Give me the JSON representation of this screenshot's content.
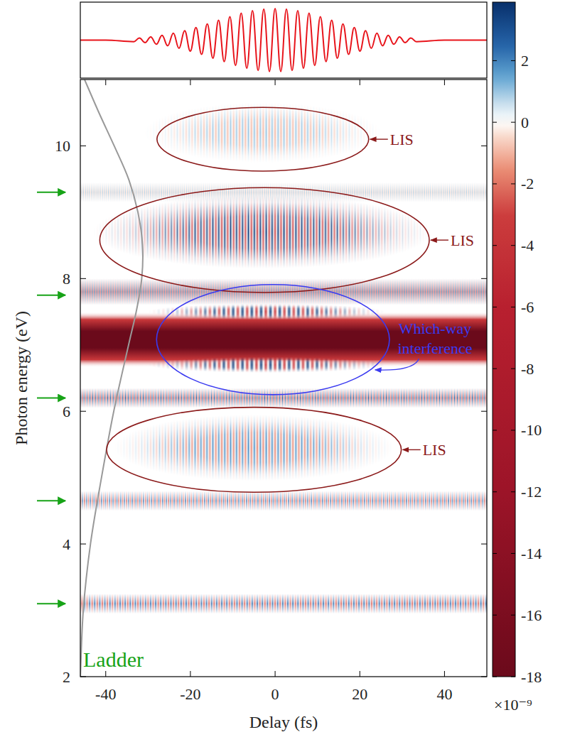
{
  "chart_data": {
    "type": "heatmap",
    "x_label": "Delay (fs)",
    "y_label": "Photon energy (eV)",
    "xlim": [
      -46,
      50
    ],
    "xticks": [
      -40,
      -20,
      0,
      20,
      40
    ],
    "ylim": [
      2,
      11
    ],
    "yticks": [
      2,
      4,
      6,
      8,
      10
    ],
    "colorbar": {
      "range": [
        -18,
        3.9
      ],
      "ticks": [
        2,
        0,
        -2,
        -4,
        -6,
        -8,
        -10,
        -12,
        -14,
        -16,
        -18
      ],
      "multiplier": "×10⁻⁹"
    },
    "absorption_band": {
      "energy": 7.08,
      "half_width": 0.42,
      "value": -18
    },
    "bands": [
      {
        "energy": 3.1,
        "half_width": 0.15,
        "amplitude": 2.5,
        "fringe_period": 1.2
      },
      {
        "energy": 4.65,
        "half_width": 0.15,
        "amplitude": 2.5,
        "fringe_period": 0.9
      },
      {
        "energy": 6.2,
        "half_width": 0.15,
        "amplitude": 3,
        "fringe_period": 0.7
      },
      {
        "energy": 7.8,
        "half_width": 0.2,
        "amplitude": 3.5,
        "fringe_period": 0.55
      },
      {
        "energy": 9.3,
        "half_width": 0.15,
        "amplitude": 0.8,
        "fringe_period": 0.45
      }
    ],
    "regions": [
      {
        "delay": -3,
        "delay_half_width": 28,
        "energy": 10.2,
        "energy_half_width": 0.45,
        "amplitude": 1,
        "fringe_period": 1.4
      },
      {
        "delay": -3,
        "delay_half_width": 40,
        "energy": 8.7,
        "energy_half_width": 0.55,
        "amplitude": 3.5,
        "fringe_period": 1.4
      },
      {
        "delay": -5,
        "delay_half_width": 33,
        "energy": 5.45,
        "energy_half_width": 0.5,
        "amplitude": 1.8,
        "fringe_period": 1.4
      },
      {
        "delay": -2,
        "delay_half_width": 28,
        "energy": 7.5,
        "energy_half_width": 0.12,
        "amplitude": 3.5,
        "fringe_period": 2.2
      },
      {
        "delay": -2,
        "delay_half_width": 28,
        "energy": 6.7,
        "energy_half_width": 0.12,
        "amplitude": 3.5,
        "fringe_period": 2.2
      }
    ],
    "annotations": [
      {
        "text": "LIS",
        "x": -2.9,
        "y": 10.1,
        "rx": 25,
        "ry": 0.48,
        "color": "#8b1a1a"
      },
      {
        "text": "LIS",
        "x": -2.5,
        "y": 8.58,
        "rx": 38.9,
        "ry": 0.79,
        "color": "#8b1a1a"
      },
      {
        "text": "Which-way interference",
        "x": -0.5,
        "y": 7.08,
        "rx": 27.5,
        "ry": 0.83,
        "color": "#3b3bf0"
      },
      {
        "text": "LIS",
        "x": -5,
        "y": 5.42,
        "rx": 34.8,
        "ry": 0.64,
        "color": "#8b1a1a"
      }
    ],
    "ladder": {
      "label": "Ladder",
      "color": "#17a317",
      "energies": [
        3.1,
        4.65,
        6.2,
        7.75,
        9.3
      ],
      "curve": {
        "x": [
          -46,
          -45.3,
          -43.6,
          -41,
          -38.1,
          -34.6,
          -32.8,
          -31.5,
          -31.3,
          -32.4,
          -34.6,
          -38,
          -41.6,
          -45
        ],
        "y": [
          2,
          3,
          4,
          5,
          6,
          7,
          7.5,
          8,
          8.5,
          9,
          9.5,
          10,
          10.5,
          11
        ],
        "color": "#999999"
      }
    },
    "pulse": {
      "color": "#e8141b",
      "ylim": [
        -1.2,
        1.2
      ],
      "x": [
        -46,
        -40,
        -33.38,
        -32.04,
        -30.71,
        -29.37,
        -28.04,
        -26.7,
        -25.37,
        -24.03,
        -22.7,
        -21.36,
        -20.03,
        -18.69,
        -17.36,
        -16.02,
        -14.69,
        -13.35,
        -12.02,
        -10.68,
        -9.35,
        -8.01,
        -6.68,
        -5.34,
        -4.01,
        -2.67,
        -1.34,
        0,
        1.34,
        2.67,
        4.01,
        5.34,
        6.68,
        8.01,
        9.35,
        10.68,
        12.02,
        13.35,
        14.69,
        16.02,
        17.36,
        18.69,
        20.03,
        21.36,
        22.7,
        24.03,
        25.37,
        26.7,
        28.04,
        29.37,
        30.71,
        32.04,
        33.38,
        40,
        50
      ],
      "values": [
        0,
        0,
        -0.05,
        0.07,
        -0.08,
        0.1,
        -0.13,
        0.15,
        -0.18,
        0.22,
        -0.26,
        0.3,
        -0.35,
        0.4,
        -0.45,
        0.51,
        -0.57,
        0.63,
        -0.68,
        0.74,
        -0.8,
        0.85,
        -0.89,
        0.93,
        -0.96,
        0.98,
        -0.99,
        1,
        -0.99,
        0.98,
        -0.96,
        0.93,
        -0.89,
        0.85,
        -0.8,
        0.74,
        -0.68,
        0.63,
        -0.57,
        0.51,
        -0.45,
        0.4,
        -0.35,
        0.3,
        -0.26,
        0.22,
        -0.18,
        0.15,
        -0.13,
        0.1,
        -0.08,
        0.07,
        -0.05,
        0,
        0
      ]
    }
  }
}
